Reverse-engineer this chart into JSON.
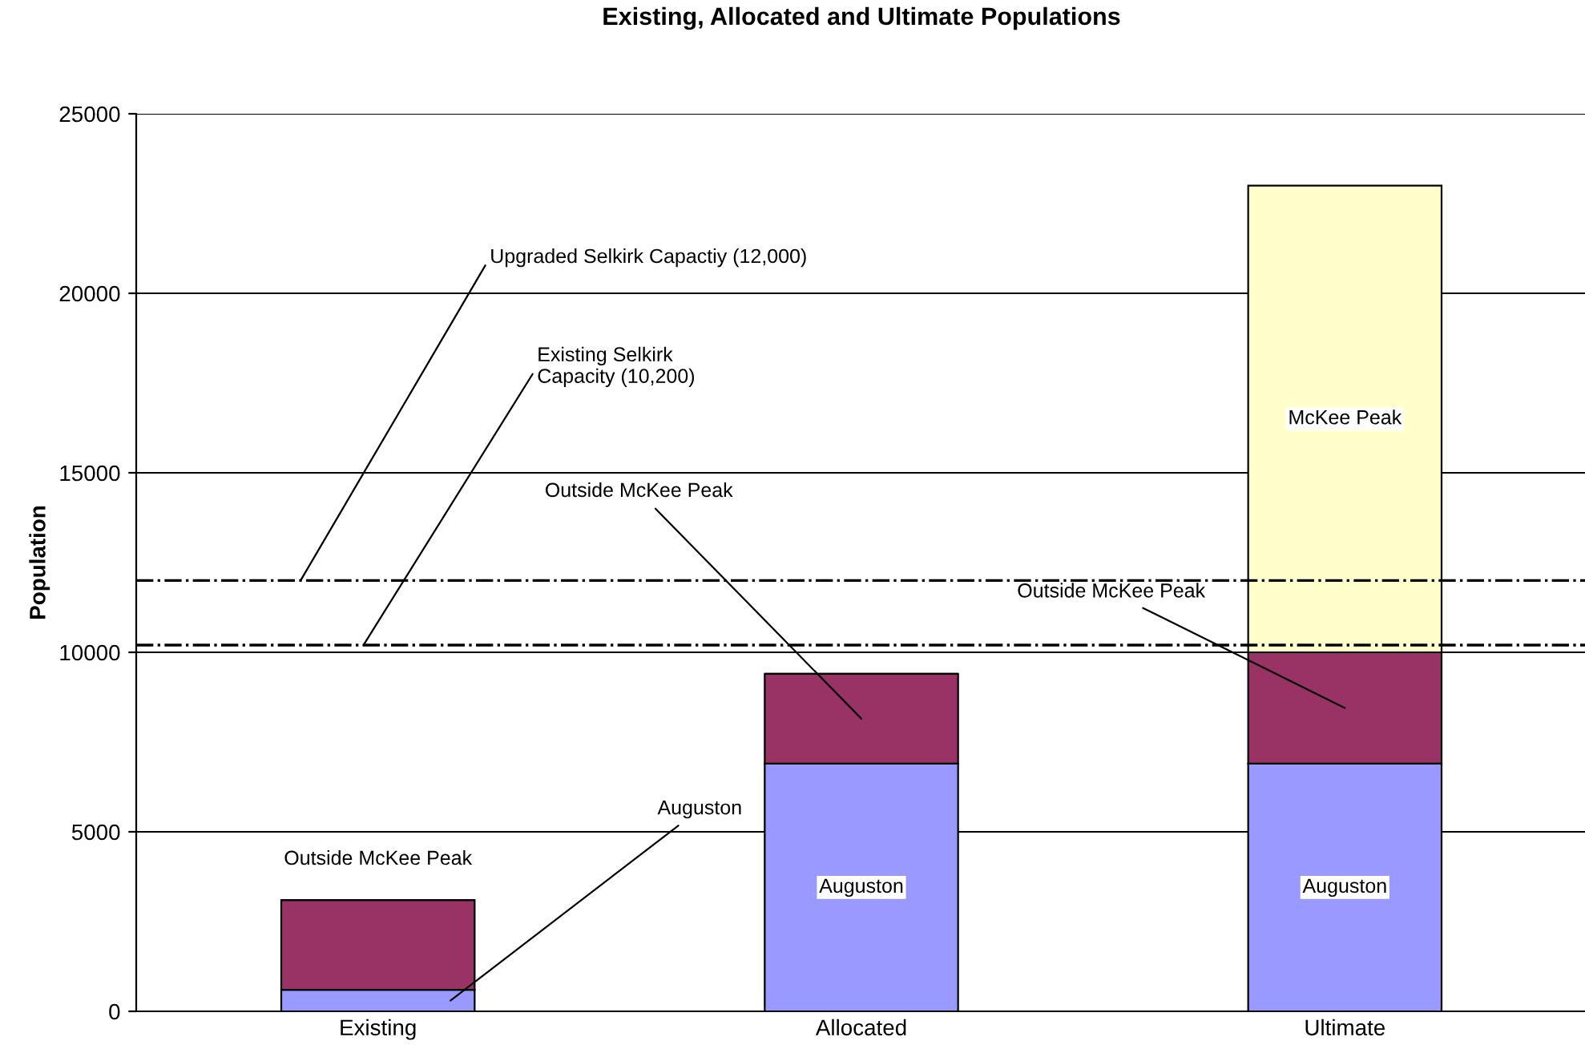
{
  "chart_data": {
    "type": "bar",
    "stacked": true,
    "title": "Existing, Allocated and Ultimate Populations",
    "ylabel": "Population",
    "categories": [
      "Existing",
      "Allocated",
      "Ultimate"
    ],
    "series": [
      {
        "color": "#9999ff",
        "values": [
          600,
          6900,
          6900
        ]
      },
      {
        "color": "#993366",
        "values": [
          2500,
          2500,
          3100
        ]
      },
      {
        "color": "#ffffcc",
        "values": [
          null,
          null,
          13000
        ]
      }
    ],
    "ylim": [
      0,
      25000
    ],
    "yticks": [
      0,
      5000,
      10000,
      15000,
      20000,
      25000
    ],
    "grid": "y",
    "legend": false,
    "ref_lines": [
      {
        "axis": "y",
        "value": 12000,
        "label": "Upgraded Selkirk Capactiy (12,000)",
        "color": "#000000",
        "line_style": "dashdot"
      },
      {
        "axis": "y",
        "value": 10200,
        "label": "Existing Selkirk\nCapacity (10,200)",
        "color": "#000000",
        "line_style": "dashdot"
      }
    ],
    "annotations": [
      "Outside McKee Peak",
      "Auguston",
      "Auguston",
      "Outside McKee Peak",
      "Auguston",
      "Outside McKee Peak",
      "McKee Peak"
    ]
  }
}
